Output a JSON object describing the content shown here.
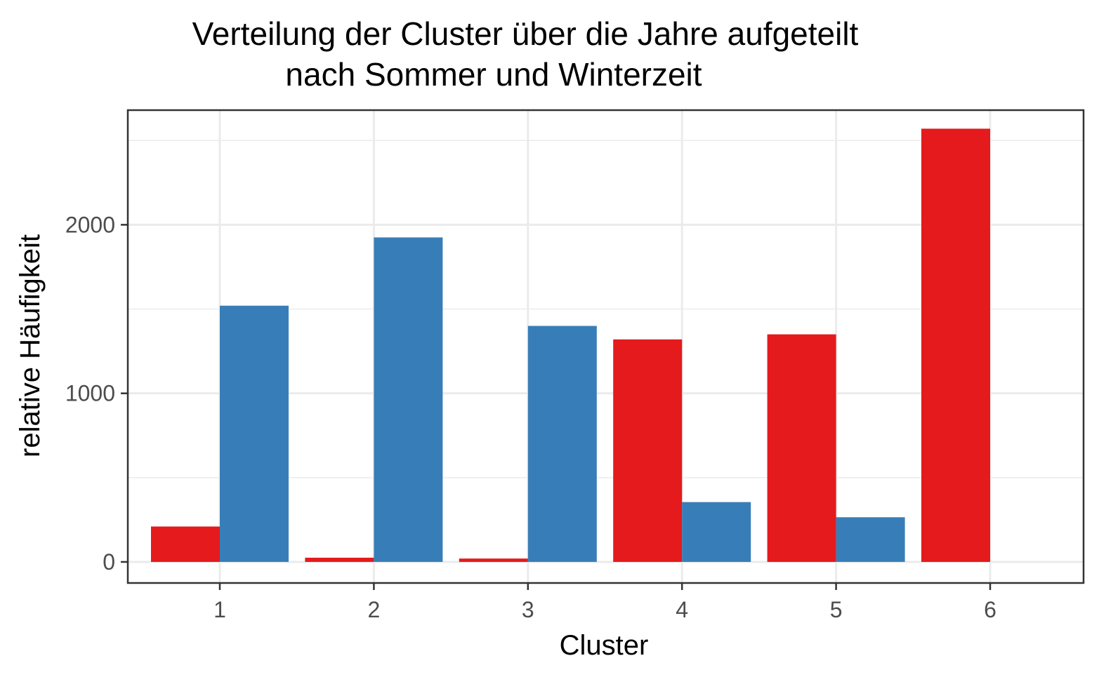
{
  "chart_data": {
    "type": "bar",
    "title_lines": [
      "Verteilung der Cluster über die Jahre aufgeteilt",
      "nach Sommer und Winterzeit"
    ],
    "xlabel": "Cluster",
    "ylabel": "relative Häufigkeit",
    "categories": [
      "1",
      "2",
      "3",
      "4",
      "5",
      "6"
    ],
    "series": [
      {
        "values": [
          210,
          25,
          20,
          1320,
          1350,
          2570
        ],
        "color": "#e41a1c"
      },
      {
        "values": [
          1520,
          1925,
          1400,
          355,
          265,
          0
        ],
        "color": "#377eb8"
      }
    ],
    "ylim": [
      -125,
      2680
    ],
    "yticks": [
      0,
      1000,
      2000
    ],
    "yticks_minor": [
      500,
      1500,
      2500
    ],
    "grid": true,
    "legend": "none",
    "colors": {
      "panel_border": "#333333",
      "grid": "#ebebeb",
      "tick_text": "#4d4d4d"
    }
  }
}
